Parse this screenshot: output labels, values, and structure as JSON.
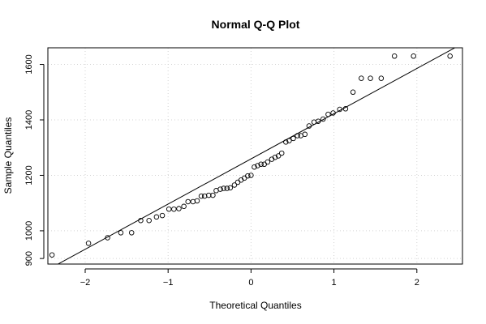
{
  "chart_data": {
    "type": "scatter",
    "title": "Normal Q-Q Plot",
    "xlabel": "Theoretical Quantiles",
    "ylabel": "Sample Quantiles",
    "xlim": [
      -2.45,
      2.55
    ],
    "ylim": [
      880,
      1660
    ],
    "x_ticks": [
      -2,
      -1,
      0,
      1,
      2
    ],
    "x_tick_labels": [
      "−2",
      "−1",
      "0",
      "1",
      "2"
    ],
    "y_ticks": [
      900,
      1000,
      1200,
      1400,
      1600
    ],
    "y_tick_labels": [
      "900",
      "1000",
      "1200",
      "1400",
      "1600"
    ],
    "grid": true,
    "colors": {
      "points": "#000000",
      "reference_line": "#000000",
      "grid": "#d3d3d3",
      "frame": "#000000"
    },
    "reference_line": {
      "x": [
        -2.45,
        2.55
      ],
      "y": [
        860,
        1675
      ]
    },
    "points": [
      {
        "x": -2.4,
        "y": 913
      },
      {
        "x": -1.96,
        "y": 955
      },
      {
        "x": -1.73,
        "y": 975
      },
      {
        "x": -1.57,
        "y": 993
      },
      {
        "x": -1.44,
        "y": 993
      },
      {
        "x": -1.33,
        "y": 1037
      },
      {
        "x": -1.23,
        "y": 1037
      },
      {
        "x": -1.14,
        "y": 1050
      },
      {
        "x": -1.07,
        "y": 1055
      },
      {
        "x": -0.99,
        "y": 1078
      },
      {
        "x": -0.93,
        "y": 1078
      },
      {
        "x": -0.87,
        "y": 1080
      },
      {
        "x": -0.81,
        "y": 1088
      },
      {
        "x": -0.76,
        "y": 1105
      },
      {
        "x": -0.7,
        "y": 1105
      },
      {
        "x": -0.65,
        "y": 1108
      },
      {
        "x": -0.6,
        "y": 1125
      },
      {
        "x": -0.56,
        "y": 1125
      },
      {
        "x": -0.51,
        "y": 1128
      },
      {
        "x": -0.46,
        "y": 1128
      },
      {
        "x": -0.42,
        "y": 1145
      },
      {
        "x": -0.37,
        "y": 1150
      },
      {
        "x": -0.33,
        "y": 1153
      },
      {
        "x": -0.29,
        "y": 1153
      },
      {
        "x": -0.25,
        "y": 1155
      },
      {
        "x": -0.2,
        "y": 1165
      },
      {
        "x": -0.16,
        "y": 1175
      },
      {
        "x": -0.12,
        "y": 1183
      },
      {
        "x": -0.08,
        "y": 1190
      },
      {
        "x": -0.04,
        "y": 1198
      },
      {
        "x": 0.0,
        "y": 1200
      },
      {
        "x": 0.04,
        "y": 1230
      },
      {
        "x": 0.08,
        "y": 1235
      },
      {
        "x": 0.12,
        "y": 1240
      },
      {
        "x": 0.16,
        "y": 1240
      },
      {
        "x": 0.2,
        "y": 1248
      },
      {
        "x": 0.25,
        "y": 1258
      },
      {
        "x": 0.29,
        "y": 1265
      },
      {
        "x": 0.33,
        "y": 1270
      },
      {
        "x": 0.37,
        "y": 1280
      },
      {
        "x": 0.42,
        "y": 1320
      },
      {
        "x": 0.46,
        "y": 1325
      },
      {
        "x": 0.51,
        "y": 1333
      },
      {
        "x": 0.56,
        "y": 1343
      },
      {
        "x": 0.6,
        "y": 1343
      },
      {
        "x": 0.65,
        "y": 1348
      },
      {
        "x": 0.7,
        "y": 1378
      },
      {
        "x": 0.76,
        "y": 1392
      },
      {
        "x": 0.81,
        "y": 1395
      },
      {
        "x": 0.87,
        "y": 1403
      },
      {
        "x": 0.93,
        "y": 1420
      },
      {
        "x": 0.99,
        "y": 1425
      },
      {
        "x": 1.07,
        "y": 1438
      },
      {
        "x": 1.14,
        "y": 1440
      },
      {
        "x": 1.23,
        "y": 1500
      },
      {
        "x": 1.33,
        "y": 1550
      },
      {
        "x": 1.44,
        "y": 1550
      },
      {
        "x": 1.57,
        "y": 1550
      },
      {
        "x": 1.73,
        "y": 1630
      },
      {
        "x": 1.96,
        "y": 1630
      },
      {
        "x": 2.4,
        "y": 1630
      }
    ]
  }
}
